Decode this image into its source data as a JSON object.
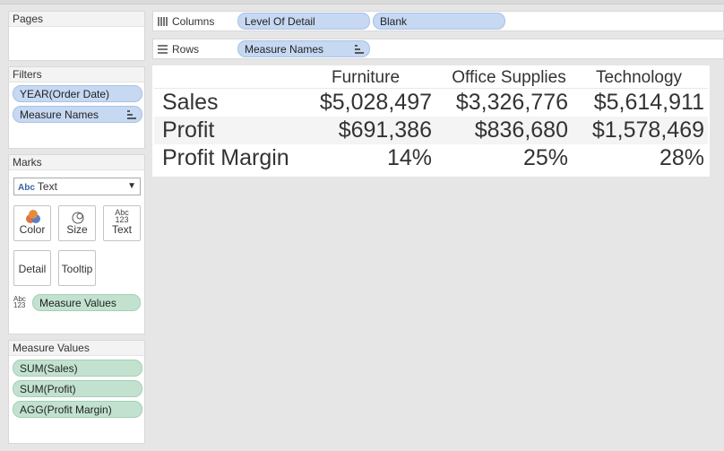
{
  "pages_card": {
    "title": "Pages"
  },
  "filters_card": {
    "title": "Filters",
    "items": [
      "YEAR(Order Date)",
      "Measure Names"
    ]
  },
  "marks_card": {
    "title": "Marks",
    "mark_type_badge": "Abc",
    "mark_type": "Text",
    "buttons": {
      "color": "Color",
      "size": "Size",
      "text": "Text",
      "detail": "Detail",
      "tooltip": "Tooltip"
    },
    "text_icon_top": "Abc",
    "text_icon_bottom": "123",
    "field_icon_top": "Abc",
    "field_icon_bottom": "123",
    "field": "Measure Values"
  },
  "measure_values_card": {
    "title": "Measure Values",
    "items": [
      "SUM(Sales)",
      "SUM(Profit)",
      "AGG(Profit Margin)"
    ]
  },
  "columns_shelf": {
    "label": "Columns",
    "pills": [
      "Level Of Detail",
      "Blank"
    ]
  },
  "rows_shelf": {
    "label": "Rows",
    "pills": [
      "Measure Names"
    ]
  },
  "table": {
    "columns": [
      "Furniture",
      "Office Supplies",
      "Technology"
    ],
    "rows": [
      {
        "label": "Sales",
        "values": [
          "$5,028,497",
          "$3,326,776",
          "$5,614,911"
        ]
      },
      {
        "label": "Profit",
        "values": [
          "$691,386",
          "$836,680",
          "$1,578,469"
        ]
      },
      {
        "label": "Profit Margin",
        "values": [
          "14%",
          "25%",
          "28%"
        ]
      }
    ]
  },
  "colors": {
    "dimension_pill": "#c6d8f2",
    "measure_pill": "#c2e2cf",
    "background": "#e6e6e6"
  }
}
